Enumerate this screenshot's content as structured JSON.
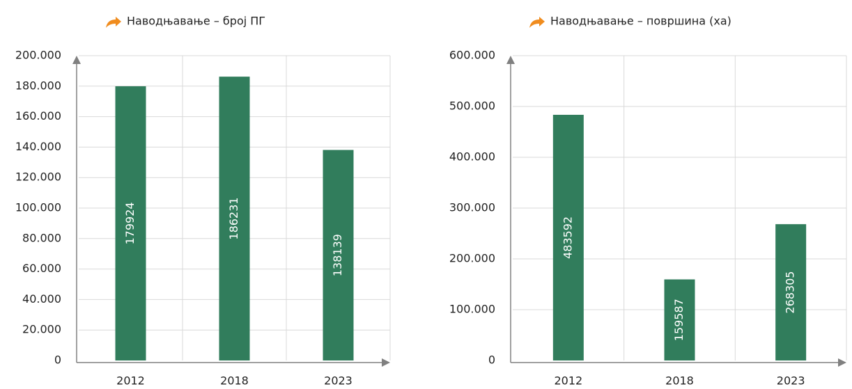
{
  "chart_data": [
    {
      "type": "bar",
      "title": "Наводњавање – број ПГ",
      "categories": [
        "2012",
        "2018",
        "2023"
      ],
      "values": [
        179924,
        186231,
        138139
      ],
      "color": "#317d5c",
      "ylim": [
        0,
        200000
      ],
      "yticks": [
        0,
        {
          "value": 20000,
          "label": "20.000"
        },
        {
          "value": 40000,
          "label": "40.000"
        },
        {
          "value": 60000,
          "label": "60.000"
        },
        {
          "value": 80000,
          "label": "80.000"
        },
        {
          "value": 100000,
          "label": "100.000"
        },
        {
          "value": 120000,
          "label": "120.000"
        },
        {
          "value": 140000,
          "label": "140.000"
        },
        {
          "value": 160000,
          "label": "160.000"
        },
        {
          "value": 180000,
          "label": "180.000"
        },
        {
          "value": 200000,
          "label": "200.000"
        }
      ],
      "grid": true
    },
    {
      "type": "bar",
      "title": "Наводњавање – површина (ха)",
      "categories": [
        "2012",
        "2018",
        "2023"
      ],
      "values": [
        483592,
        159587,
        268305
      ],
      "color": "#317d5c",
      "ylim": [
        0,
        600000
      ],
      "yticks": [
        0,
        {
          "value": 100000,
          "label": "100.000"
        },
        {
          "value": 200000,
          "label": "200.000"
        },
        {
          "value": 300000,
          "label": "300.000"
        },
        {
          "value": 400000,
          "label": "400.000"
        },
        {
          "value": 500000,
          "label": "500.000"
        },
        {
          "value": 600000,
          "label": "600.000"
        }
      ],
      "grid": true
    }
  ]
}
